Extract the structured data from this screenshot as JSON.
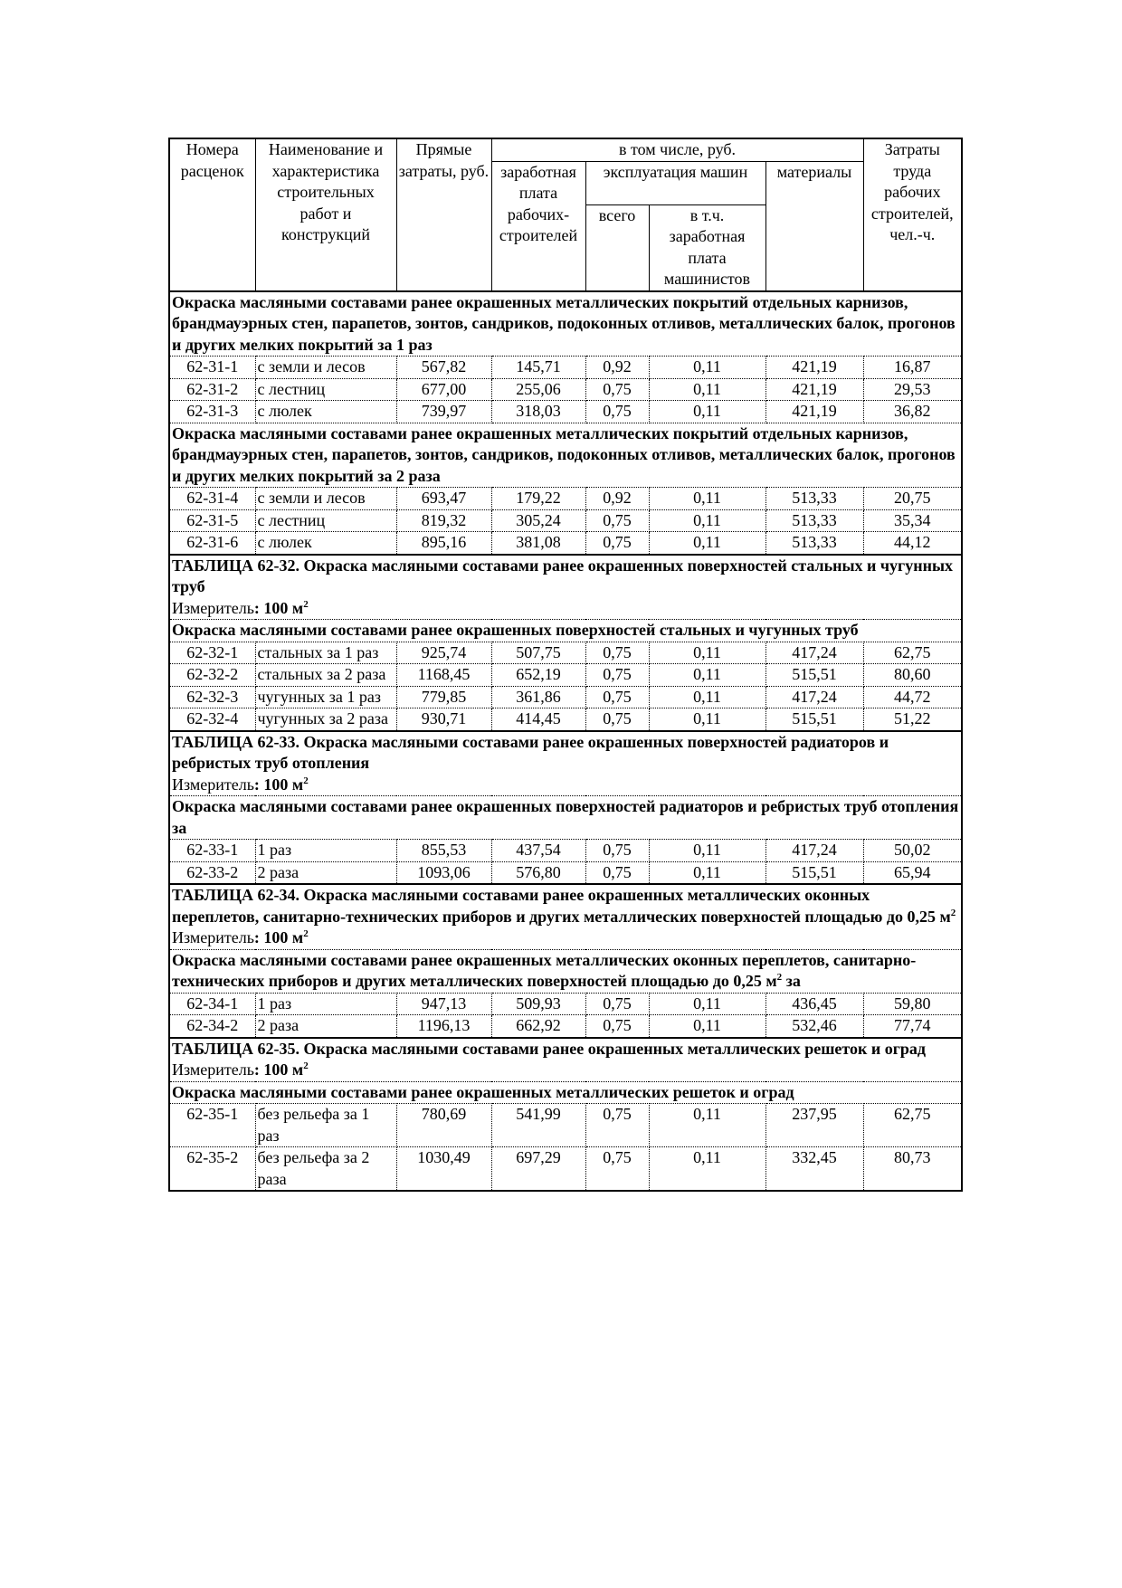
{
  "header": {
    "code": "Номера расценок",
    "name": "Наименование и характеристика строительных работ и конструкций",
    "direct": "Прямые затраты, руб.",
    "including": "в том числе, руб.",
    "wages": "заработная плата рабочих-строителей",
    "machines": "эксплуатация машин",
    "machines_total": "всего",
    "machines_wages": "в т.ч. заработная плата машинистов",
    "materials": "материалы",
    "labor": "Затраты труда рабочих строителей, чел.-ч."
  },
  "sections": [
    {
      "groups": [
        {
          "heading": "Окраска масляными составами ранее окрашенных металлических покрытий отдельных карнизов, брандмауэрных стен, парапетов, зонтов, сандриков, подоконных отливов, металлических балок, прогонов и других мелких покрытий за 1 раз",
          "rows": [
            [
              "62-31-1",
              "с земли и лесов",
              "567,82",
              "145,71",
              "0,92",
              "0,11",
              "421,19",
              "16,87"
            ],
            [
              "62-31-2",
              "с лестниц",
              "677,00",
              "255,06",
              "0,75",
              "0,11",
              "421,19",
              "29,53"
            ],
            [
              "62-31-3",
              "с люлек",
              "739,97",
              "318,03",
              "0,75",
              "0,11",
              "421,19",
              "36,82"
            ]
          ]
        },
        {
          "heading": "Окраска масляными составами ранее окрашенных металлических покрытий отдельных карнизов, брандмауэрных стен, парапетов, зонтов, сандриков, подоконных отливов, металлических балок, прогонов и других мелких покрытий за 2 раза",
          "rows": [
            [
              "62-31-4",
              "с земли и лесов",
              "693,47",
              "179,22",
              "0,92",
              "0,11",
              "513,33",
              "20,75"
            ],
            [
              "62-31-5",
              "с лестниц",
              "819,32",
              "305,24",
              "0,75",
              "0,11",
              "513,33",
              "35,34"
            ],
            [
              "62-31-6",
              "с люлек",
              "895,16",
              "381,08",
              "0,75",
              "0,11",
              "513,33",
              "44,12"
            ]
          ]
        }
      ]
    },
    {
      "title": "ТАБЛИЦА  62-32.  Окраска масляными составами ранее окрашенных поверхностей стальных и чугунных труб",
      "measure_label": "Измеритель",
      "measure_value": ": 100 м",
      "measure_sup": "2",
      "groups": [
        {
          "heading": "Окраска масляными составами ранее окрашенных поверхностей стальных и чугунных труб",
          "rows": [
            [
              "62-32-1",
              "стальных за 1 раз",
              "925,74",
              "507,75",
              "0,75",
              "0,11",
              "417,24",
              "62,75"
            ],
            [
              "62-32-2",
              "стальных за 2 раза",
              "1168,45",
              "652,19",
              "0,75",
              "0,11",
              "515,51",
              "80,60"
            ],
            [
              "62-32-3",
              "чугунных за 1 раз",
              "779,85",
              "361,86",
              "0,75",
              "0,11",
              "417,24",
              "44,72"
            ],
            [
              "62-32-4",
              "чугунных за 2 раза",
              "930,71",
              "414,45",
              "0,75",
              "0,11",
              "515,51",
              "51,22"
            ]
          ]
        }
      ]
    },
    {
      "title": "ТАБЛИЦА  62-33.  Окраска масляными составами ранее окрашенных поверхностей радиаторов и ребристых труб отопления",
      "measure_label": "Измеритель",
      "measure_value": ": 100 м",
      "measure_sup": "2",
      "groups": [
        {
          "heading": "Окраска масляными составами ранее окрашенных поверхностей радиаторов и ребристых труб отопления за",
          "rows": [
            [
              "62-33-1",
              "1 раз",
              "855,53",
              "437,54",
              "0,75",
              "0,11",
              "417,24",
              "50,02"
            ],
            [
              "62-33-2",
              "2 раза",
              "1093,06",
              "576,80",
              "0,75",
              "0,11",
              "515,51",
              "65,94"
            ]
          ]
        }
      ]
    },
    {
      "title": "ТАБЛИЦА  62-34.  Окраска масляными составами ранее окрашенных металлических оконных переплетов, санитарно-технических приборов и других металлических поверхностей площадью до 0,25 м",
      "title_sup": "2",
      "measure_label": "Измеритель",
      "measure_value": ": 100 м",
      "measure_sup": "2",
      "groups": [
        {
          "heading": "Окраска масляными составами ранее окрашенных металлических оконных переплетов, санитарно-технических приборов и других металлических поверхностей площадью до 0,25 м",
          "heading_sup": "2",
          "heading_tail": " за",
          "rows": [
            [
              "62-34-1",
              "1 раз",
              "947,13",
              "509,93",
              "0,75",
              "0,11",
              "436,45",
              "59,80"
            ],
            [
              "62-34-2",
              "2 раза",
              "1196,13",
              "662,92",
              "0,75",
              "0,11",
              "532,46",
              "77,74"
            ]
          ]
        }
      ]
    },
    {
      "title": "ТАБЛИЦА  62-35.  Окраска масляными составами ранее окрашенных металлических решеток и оград",
      "measure_label": "Измеритель",
      "measure_value": ": 100 м",
      "measure_sup": "2",
      "groups": [
        {
          "heading": "Окраска масляными составами ранее окрашенных металлических решеток и оград",
          "rows": [
            [
              "62-35-1",
              "без рельефа за 1 раз",
              "780,69",
              "541,99",
              "0,75",
              "0,11",
              "237,95",
              "62,75"
            ],
            [
              "62-35-2",
              "без рельефа за 2 раза",
              "1030,49",
              "697,29",
              "0,75",
              "0,11",
              "332,45",
              "80,73"
            ]
          ]
        }
      ]
    }
  ]
}
